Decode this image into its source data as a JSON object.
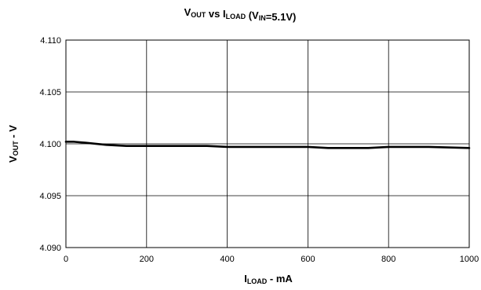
{
  "chart_data": {
    "type": "line",
    "title": {
      "parts": [
        {
          "text": "V",
          "sub": "OUT"
        },
        {
          "text": " vs I",
          "sub": "LOAD"
        },
        {
          "text": " (V",
          "sub": "IN"
        },
        {
          "text": "=5.1V)",
          "sub": ""
        }
      ]
    },
    "xlabel": {
      "main": "I",
      "sub": "LOAD",
      "suffix": " - mA"
    },
    "ylabel": {
      "main": "V",
      "sub": "OUT",
      "suffix": " - V"
    },
    "xlim": [
      0,
      1000
    ],
    "ylim": [
      4.09,
      4.11
    ],
    "x_ticks": [
      "0",
      "200",
      "400",
      "600",
      "800",
      "1000"
    ],
    "y_ticks": [
      "4.110",
      "4.105",
      "4.100",
      "4.095",
      "4.090"
    ],
    "x_tick_values": [
      0,
      200,
      400,
      600,
      800,
      1000
    ],
    "y_tick_values": [
      4.11,
      4.105,
      4.1,
      4.095,
      4.09
    ],
    "grid": true,
    "series": [
      {
        "color": "#000000",
        "x": [
          0,
          20,
          50,
          100,
          150,
          200,
          300,
          350,
          400,
          500,
          600,
          650,
          750,
          800,
          900,
          1000
        ],
        "y": [
          4.1002,
          4.1002,
          4.1001,
          4.0999,
          4.0998,
          4.0998,
          4.0998,
          4.0998,
          4.0997,
          4.0997,
          4.0997,
          4.0996,
          4.0996,
          4.0997,
          4.0997,
          4.0996
        ]
      }
    ]
  }
}
